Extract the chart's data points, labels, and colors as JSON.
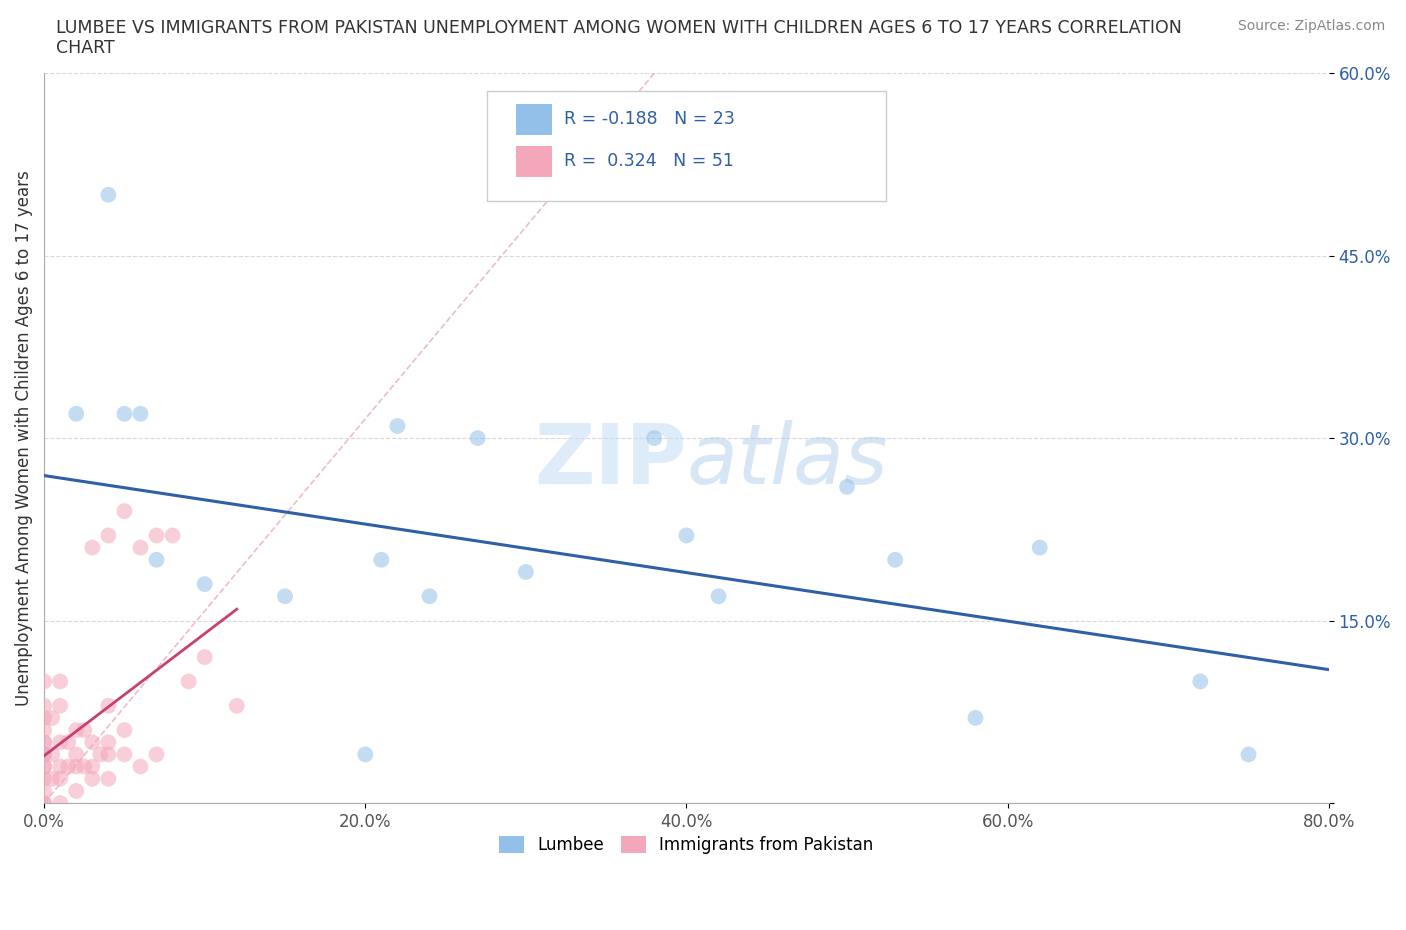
{
  "title_line1": "LUMBEE VS IMMIGRANTS FROM PAKISTAN UNEMPLOYMENT AMONG WOMEN WITH CHILDREN AGES 6 TO 17 YEARS CORRELATION",
  "title_line2": "CHART",
  "source": "Source: ZipAtlas.com",
  "ylabel": "Unemployment Among Women with Children Ages 6 to 17 years",
  "xlim": [
    0.0,
    0.8
  ],
  "ylim": [
    0.0,
    0.6
  ],
  "xticks": [
    0.0,
    0.2,
    0.4,
    0.6,
    0.8
  ],
  "xticklabels": [
    "0.0%",
    "20.0%",
    "40.0%",
    "60.0%",
    "80.0%"
  ],
  "yticks": [
    0.0,
    0.15,
    0.3,
    0.45,
    0.6
  ],
  "yticklabels": [
    "",
    "15.0%",
    "30.0%",
    "45.0%",
    "60.0%"
  ],
  "lumbee_color": "#92c0e8",
  "pakistan_color": "#f4a7b9",
  "lumbee_line_color": "#2f5fa5",
  "pakistan_line_color": "#c94070",
  "R_lumbee": -0.188,
  "N_lumbee": 23,
  "R_pakistan": 0.324,
  "N_pakistan": 51,
  "lumbee_x": [
    0.0,
    0.02,
    0.04,
    0.05,
    0.06,
    0.07,
    0.1,
    0.15,
    0.2,
    0.21,
    0.22,
    0.24,
    0.27,
    0.3,
    0.38,
    0.4,
    0.42,
    0.5,
    0.53,
    0.58,
    0.62,
    0.72,
    0.75
  ],
  "lumbee_y": [
    0.04,
    0.32,
    0.5,
    0.32,
    0.32,
    0.2,
    0.18,
    0.17,
    0.04,
    0.2,
    0.31,
    0.17,
    0.3,
    0.19,
    0.3,
    0.22,
    0.17,
    0.26,
    0.2,
    0.07,
    0.21,
    0.1,
    0.04
  ],
  "pakistan_x": [
    0.0,
    0.0,
    0.0,
    0.0,
    0.0,
    0.0,
    0.0,
    0.0,
    0.0,
    0.0,
    0.0,
    0.0,
    0.0,
    0.005,
    0.005,
    0.005,
    0.01,
    0.01,
    0.01,
    0.01,
    0.01,
    0.01,
    0.015,
    0.015,
    0.02,
    0.02,
    0.02,
    0.02,
    0.025,
    0.025,
    0.03,
    0.03,
    0.03,
    0.03,
    0.035,
    0.04,
    0.04,
    0.04,
    0.04,
    0.04,
    0.05,
    0.05,
    0.05,
    0.06,
    0.06,
    0.07,
    0.07,
    0.08,
    0.09,
    0.1,
    0.12
  ],
  "pakistan_y": [
    0.0,
    0.0,
    0.01,
    0.02,
    0.03,
    0.03,
    0.04,
    0.05,
    0.05,
    0.06,
    0.07,
    0.08,
    0.1,
    0.02,
    0.04,
    0.07,
    0.0,
    0.02,
    0.03,
    0.05,
    0.08,
    0.1,
    0.03,
    0.05,
    0.01,
    0.03,
    0.04,
    0.06,
    0.03,
    0.06,
    0.02,
    0.03,
    0.05,
    0.21,
    0.04,
    0.02,
    0.04,
    0.05,
    0.08,
    0.22,
    0.04,
    0.06,
    0.24,
    0.03,
    0.21,
    0.04,
    0.22,
    0.22,
    0.1,
    0.12,
    0.08
  ],
  "watermark_ZIP": "ZIP",
  "watermark_atlas": "atlas",
  "background_color": "#ffffff",
  "grid_color": "#d8d8d8",
  "marker_size": 130,
  "marker_alpha": 0.55
}
